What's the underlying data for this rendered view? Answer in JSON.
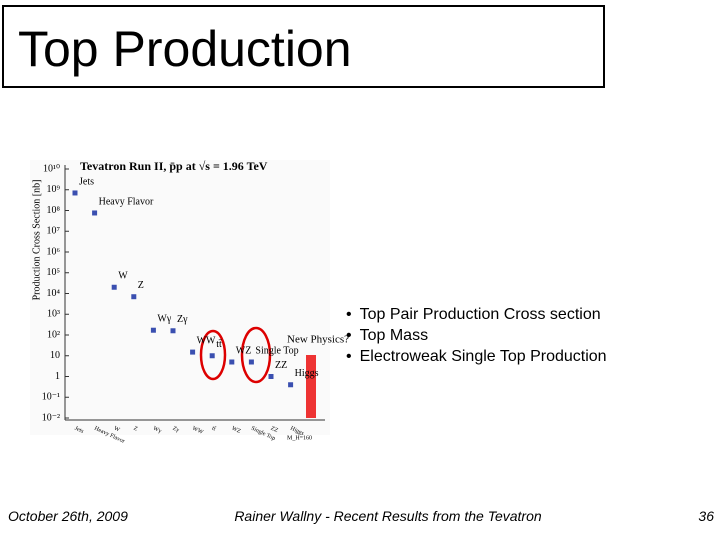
{
  "header": {
    "title": "Top Production"
  },
  "bullets": [
    "Top Pair Production Cross section",
    "Top Mass",
    "Electroweak Single Top Production"
  ],
  "footer": {
    "date": "October 26th, 2009",
    "center": "Rainer Wallny - Recent Results from the Tevatron",
    "page": "36"
  },
  "chart_data": {
    "type": "scatter",
    "title": "Tevatron Run II, p̄p at √s = 1.96 TeV",
    "y_label": "Production Cross Section [nb]",
    "categories": [
      "Jets",
      "Heavy Flavor",
      "W",
      "Z",
      "Wγ",
      "Zγ",
      "WW",
      "tt̄",
      "WZ",
      "Single Top",
      "ZZ",
      "Higgs"
    ],
    "values": [
      700000000,
      76000000,
      20000,
      7000,
      170,
      160,
      15,
      10,
      5,
      5,
      1,
      0.4
    ],
    "color": "#3a4fb0",
    "log_scale": true,
    "ylim": [
      0.01,
      10000000000
    ],
    "yticks": [
      {
        "value": 10000000000,
        "label": "10¹⁰"
      },
      {
        "value": 1000000000,
        "label": "10⁹"
      },
      {
        "value": 100000000,
        "label": "10⁸"
      },
      {
        "value": 10000000,
        "label": "10⁷"
      },
      {
        "value": 1000000,
        "label": "10⁶"
      },
      {
        "value": 100000,
        "label": "10⁵"
      },
      {
        "value": 10000,
        "label": "10⁴"
      },
      {
        "value": 1000,
        "label": "10³"
      },
      {
        "value": 100,
        "label": "10²"
      },
      10,
      1,
      {
        "value": 0.1,
        "label": "10⁻¹"
      },
      {
        "value": 0.01,
        "label": "10⁻²"
      }
    ],
    "annotations": [
      "New Physics?",
      "M_H=160"
    ]
  }
}
